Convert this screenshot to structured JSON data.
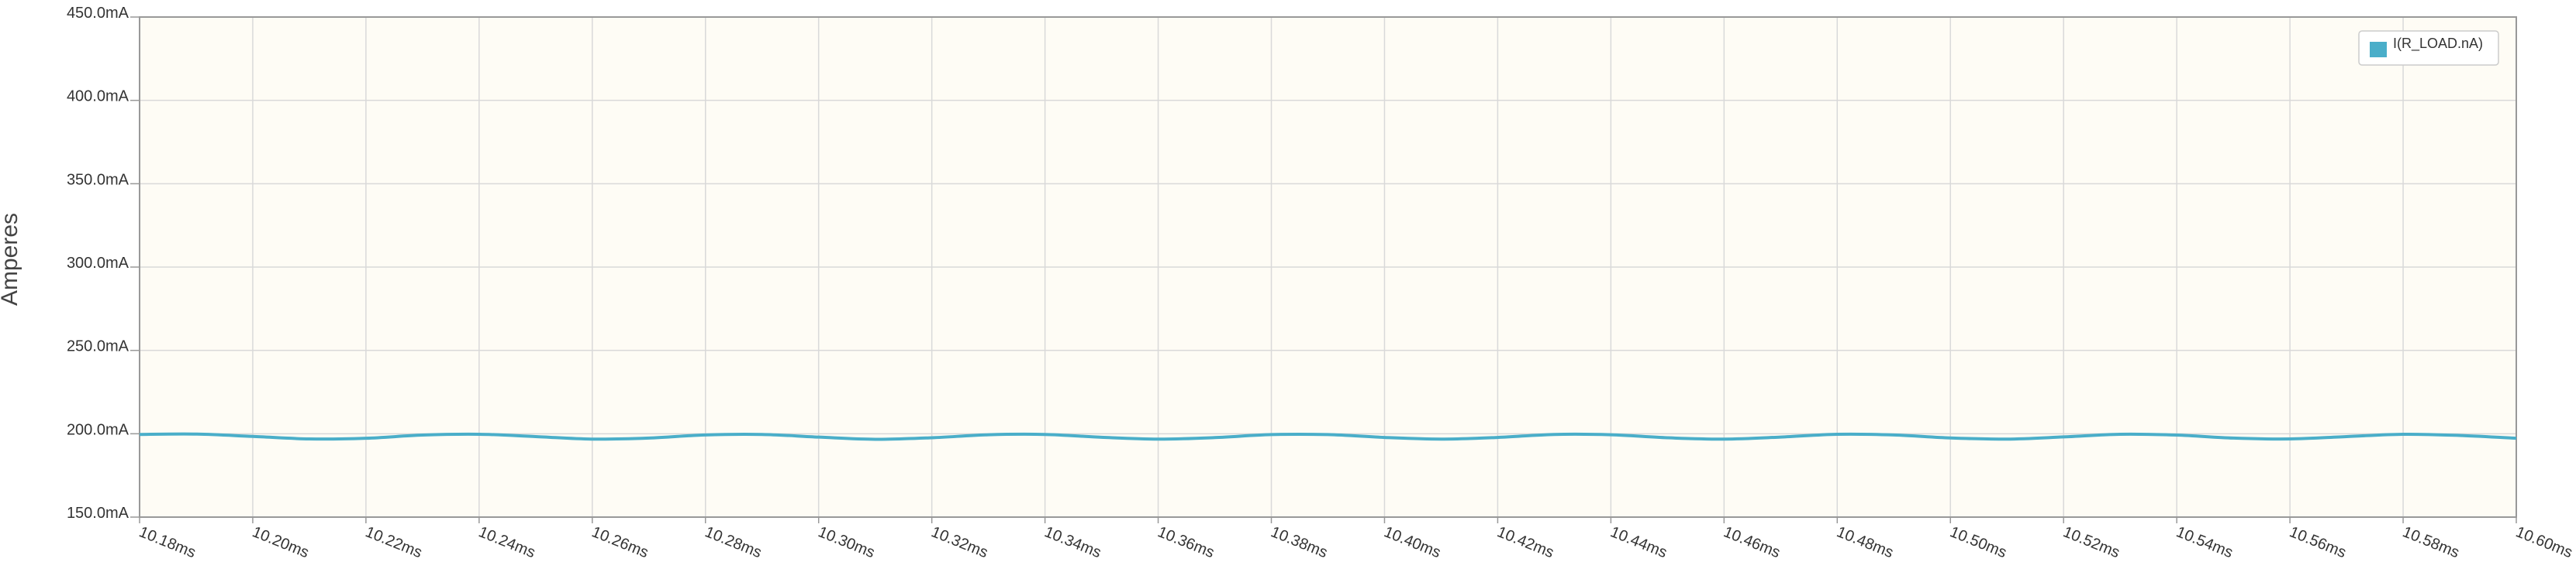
{
  "chart_data": {
    "type": "line",
    "ylabel": "Amperes",
    "xlabel": "",
    "ylim": [
      150,
      450
    ],
    "xlim": [
      10.18,
      10.6
    ],
    "y_ticks": [
      "150.0mA",
      "200.0mA",
      "250.0mA",
      "300.0mA",
      "350.0mA",
      "400.0mA",
      "450.0mA"
    ],
    "y_tick_values": [
      150,
      200,
      250,
      300,
      350,
      400,
      450
    ],
    "x_ticks": [
      "10.18ms",
      "10.20ms",
      "10.22ms",
      "10.24ms",
      "10.26ms",
      "10.28ms",
      "10.30ms",
      "10.32ms",
      "10.34ms",
      "10.36ms",
      "10.38ms",
      "10.40ms",
      "10.42ms",
      "10.44ms",
      "10.46ms",
      "10.48ms",
      "10.50ms",
      "10.52ms",
      "10.54ms",
      "10.56ms",
      "10.58ms",
      "10.60ms"
    ],
    "x_tick_values": [
      10.18,
      10.2,
      10.22,
      10.24,
      10.26,
      10.28,
      10.3,
      10.32,
      10.34,
      10.36,
      10.38,
      10.4,
      10.42,
      10.44,
      10.46,
      10.48,
      10.5,
      10.52,
      10.54,
      10.56,
      10.58,
      10.6
    ],
    "grid": true,
    "legend_position": "top-right",
    "series": [
      {
        "name": "I(R_LOAD.nA)",
        "color": "#4aaec9",
        "x": [
          10.18,
          10.19,
          10.2,
          10.21,
          10.22,
          10.23,
          10.24,
          10.25,
          10.26,
          10.27,
          10.28,
          10.29,
          10.3,
          10.31,
          10.32,
          10.33,
          10.34,
          10.35,
          10.36,
          10.37,
          10.38,
          10.39,
          10.4,
          10.41,
          10.42,
          10.43,
          10.44,
          10.45,
          10.46,
          10.47,
          10.48,
          10.49,
          10.5,
          10.51,
          10.52,
          10.53,
          10.54,
          10.55,
          10.56,
          10.57,
          10.58,
          10.59,
          10.6
        ],
        "y": [
          199.6,
          199.8,
          198.4,
          196.9,
          197.3,
          199.2,
          199.7,
          198.3,
          196.8,
          197.4,
          199.3,
          199.6,
          198.0,
          196.7,
          197.6,
          199.4,
          199.6,
          197.9,
          196.8,
          197.7,
          199.5,
          199.5,
          197.8,
          196.8,
          197.8,
          199.6,
          199.4,
          197.6,
          196.8,
          198.0,
          199.7,
          199.3,
          197.5,
          196.8,
          198.1,
          199.7,
          199.2,
          197.4,
          196.9,
          198.3,
          199.7,
          199.0,
          197.3
        ]
      }
    ]
  },
  "colors": {
    "plot_background": "#fefcf5",
    "grid": "#d9d9d9",
    "axis": "#999999",
    "series": "#4aaec9"
  }
}
